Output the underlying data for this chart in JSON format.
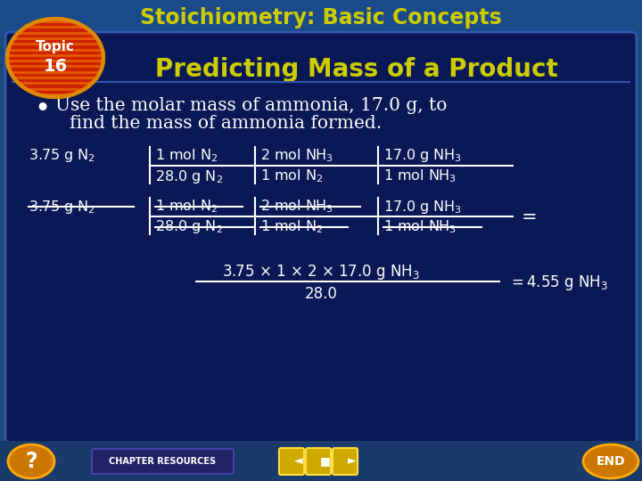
{
  "bg_outer": "#1a4a7a",
  "bg_header": "#1a4a8a",
  "bg_content": "#0a1855",
  "title_text": "Stoichiometry: Basic Concepts",
  "title_color": "#cccc00",
  "heading_text": "Predicting Mass of a Product",
  "heading_color": "#cccc00",
  "bullet_color": "#ffffff",
  "bullet_line1": "Use the molar mass of ammonia, 17.0 g, to",
  "bullet_line2": "find the mass of ammonia formed.",
  "footer_text": "CHAPTER RESOURCES",
  "eq_color": "#ffffff"
}
